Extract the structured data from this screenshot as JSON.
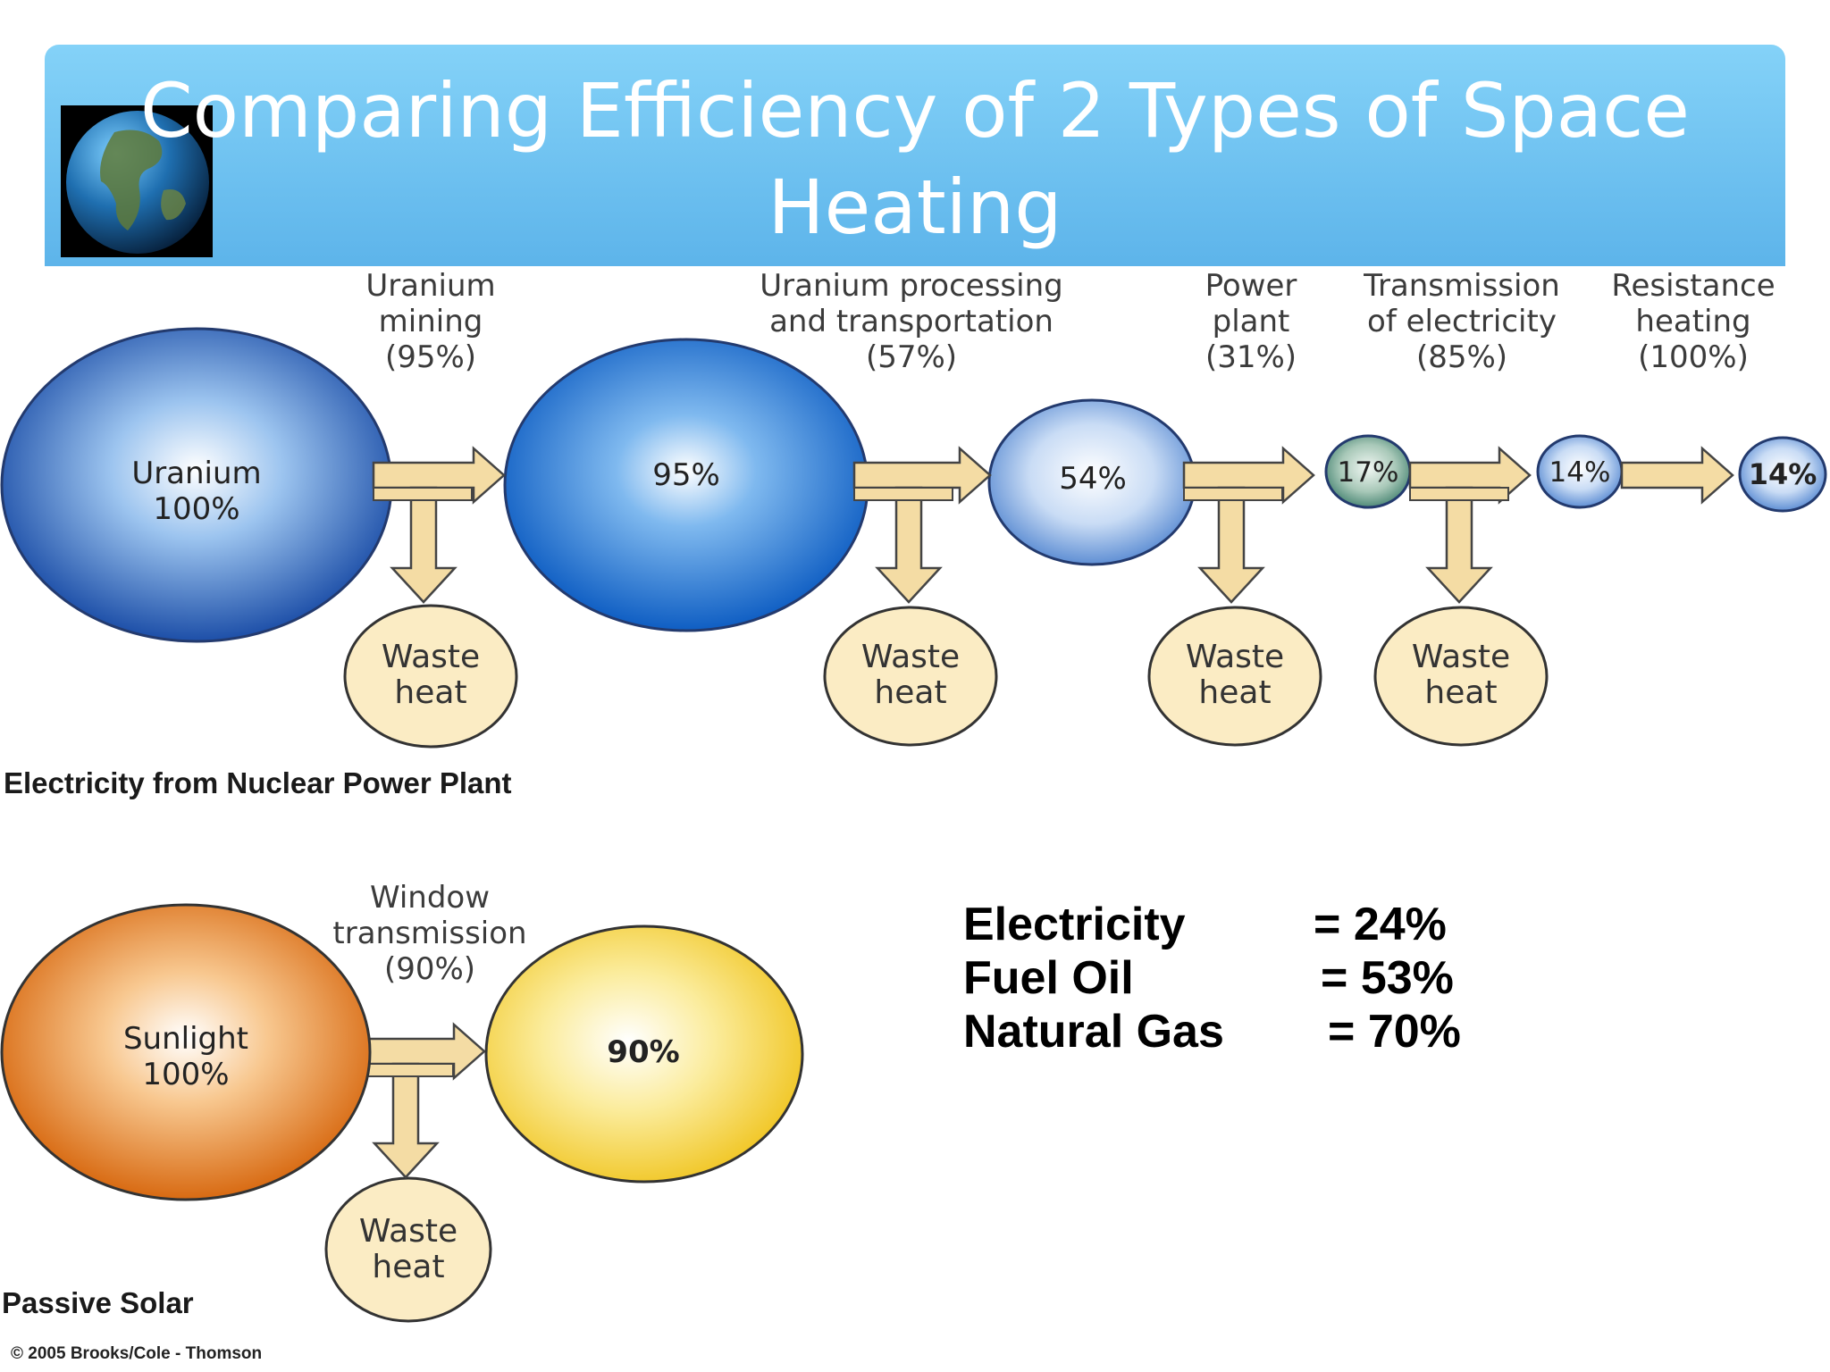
{
  "title": "Comparing Efficiency of 2 Types of Space Heating",
  "globe_icon": "earth-globe-icon",
  "nuclear": {
    "caption": "Electricity from Nuclear Power Plant",
    "start": {
      "name": "Uranium",
      "value": "100%"
    },
    "stages": [
      {
        "label": [
          "Uranium",
          "mining",
          "(95%)"
        ],
        "result": "95%"
      },
      {
        "label": [
          "Uranium processing",
          "and transportation",
          "(57%)"
        ],
        "result": "54%"
      },
      {
        "label": [
          "Power",
          "plant",
          "(31%)"
        ],
        "result": "17%"
      },
      {
        "label": [
          "Transmission",
          "of electricity",
          "(85%)"
        ],
        "result": "14%"
      },
      {
        "label": [
          "Resistance",
          "heating",
          "(100%)"
        ],
        "result": "14%"
      }
    ],
    "waste": [
      "Waste",
      "heat"
    ]
  },
  "solar": {
    "caption": "Passive Solar",
    "start": {
      "name": "Sunlight",
      "value": "100%"
    },
    "stage": {
      "label": [
        "Window",
        "transmission",
        "(90%)"
      ],
      "result": "90%"
    },
    "waste": [
      "Waste",
      "heat"
    ]
  },
  "summary": [
    {
      "name": "Electricity",
      "value": "= 24%"
    },
    {
      "name": "Fuel Oil",
      "value": "= 53%"
    },
    {
      "name": "Natural Gas",
      "value": "= 70%"
    }
  ],
  "copyright": "© 2005 Brooks/Cole - Thomson",
  "colors": {
    "title_bar": "#6cc4f2",
    "nuclear_circle": "#1f5fb8",
    "small_circle": "#8fb3e4",
    "green_circle": "#4f8a78",
    "waste_fill": "#fbecc4",
    "arrow_fill": "#f4dca4",
    "sun_orange": "#e07a1e",
    "sun_yellow": "#f5d030"
  }
}
